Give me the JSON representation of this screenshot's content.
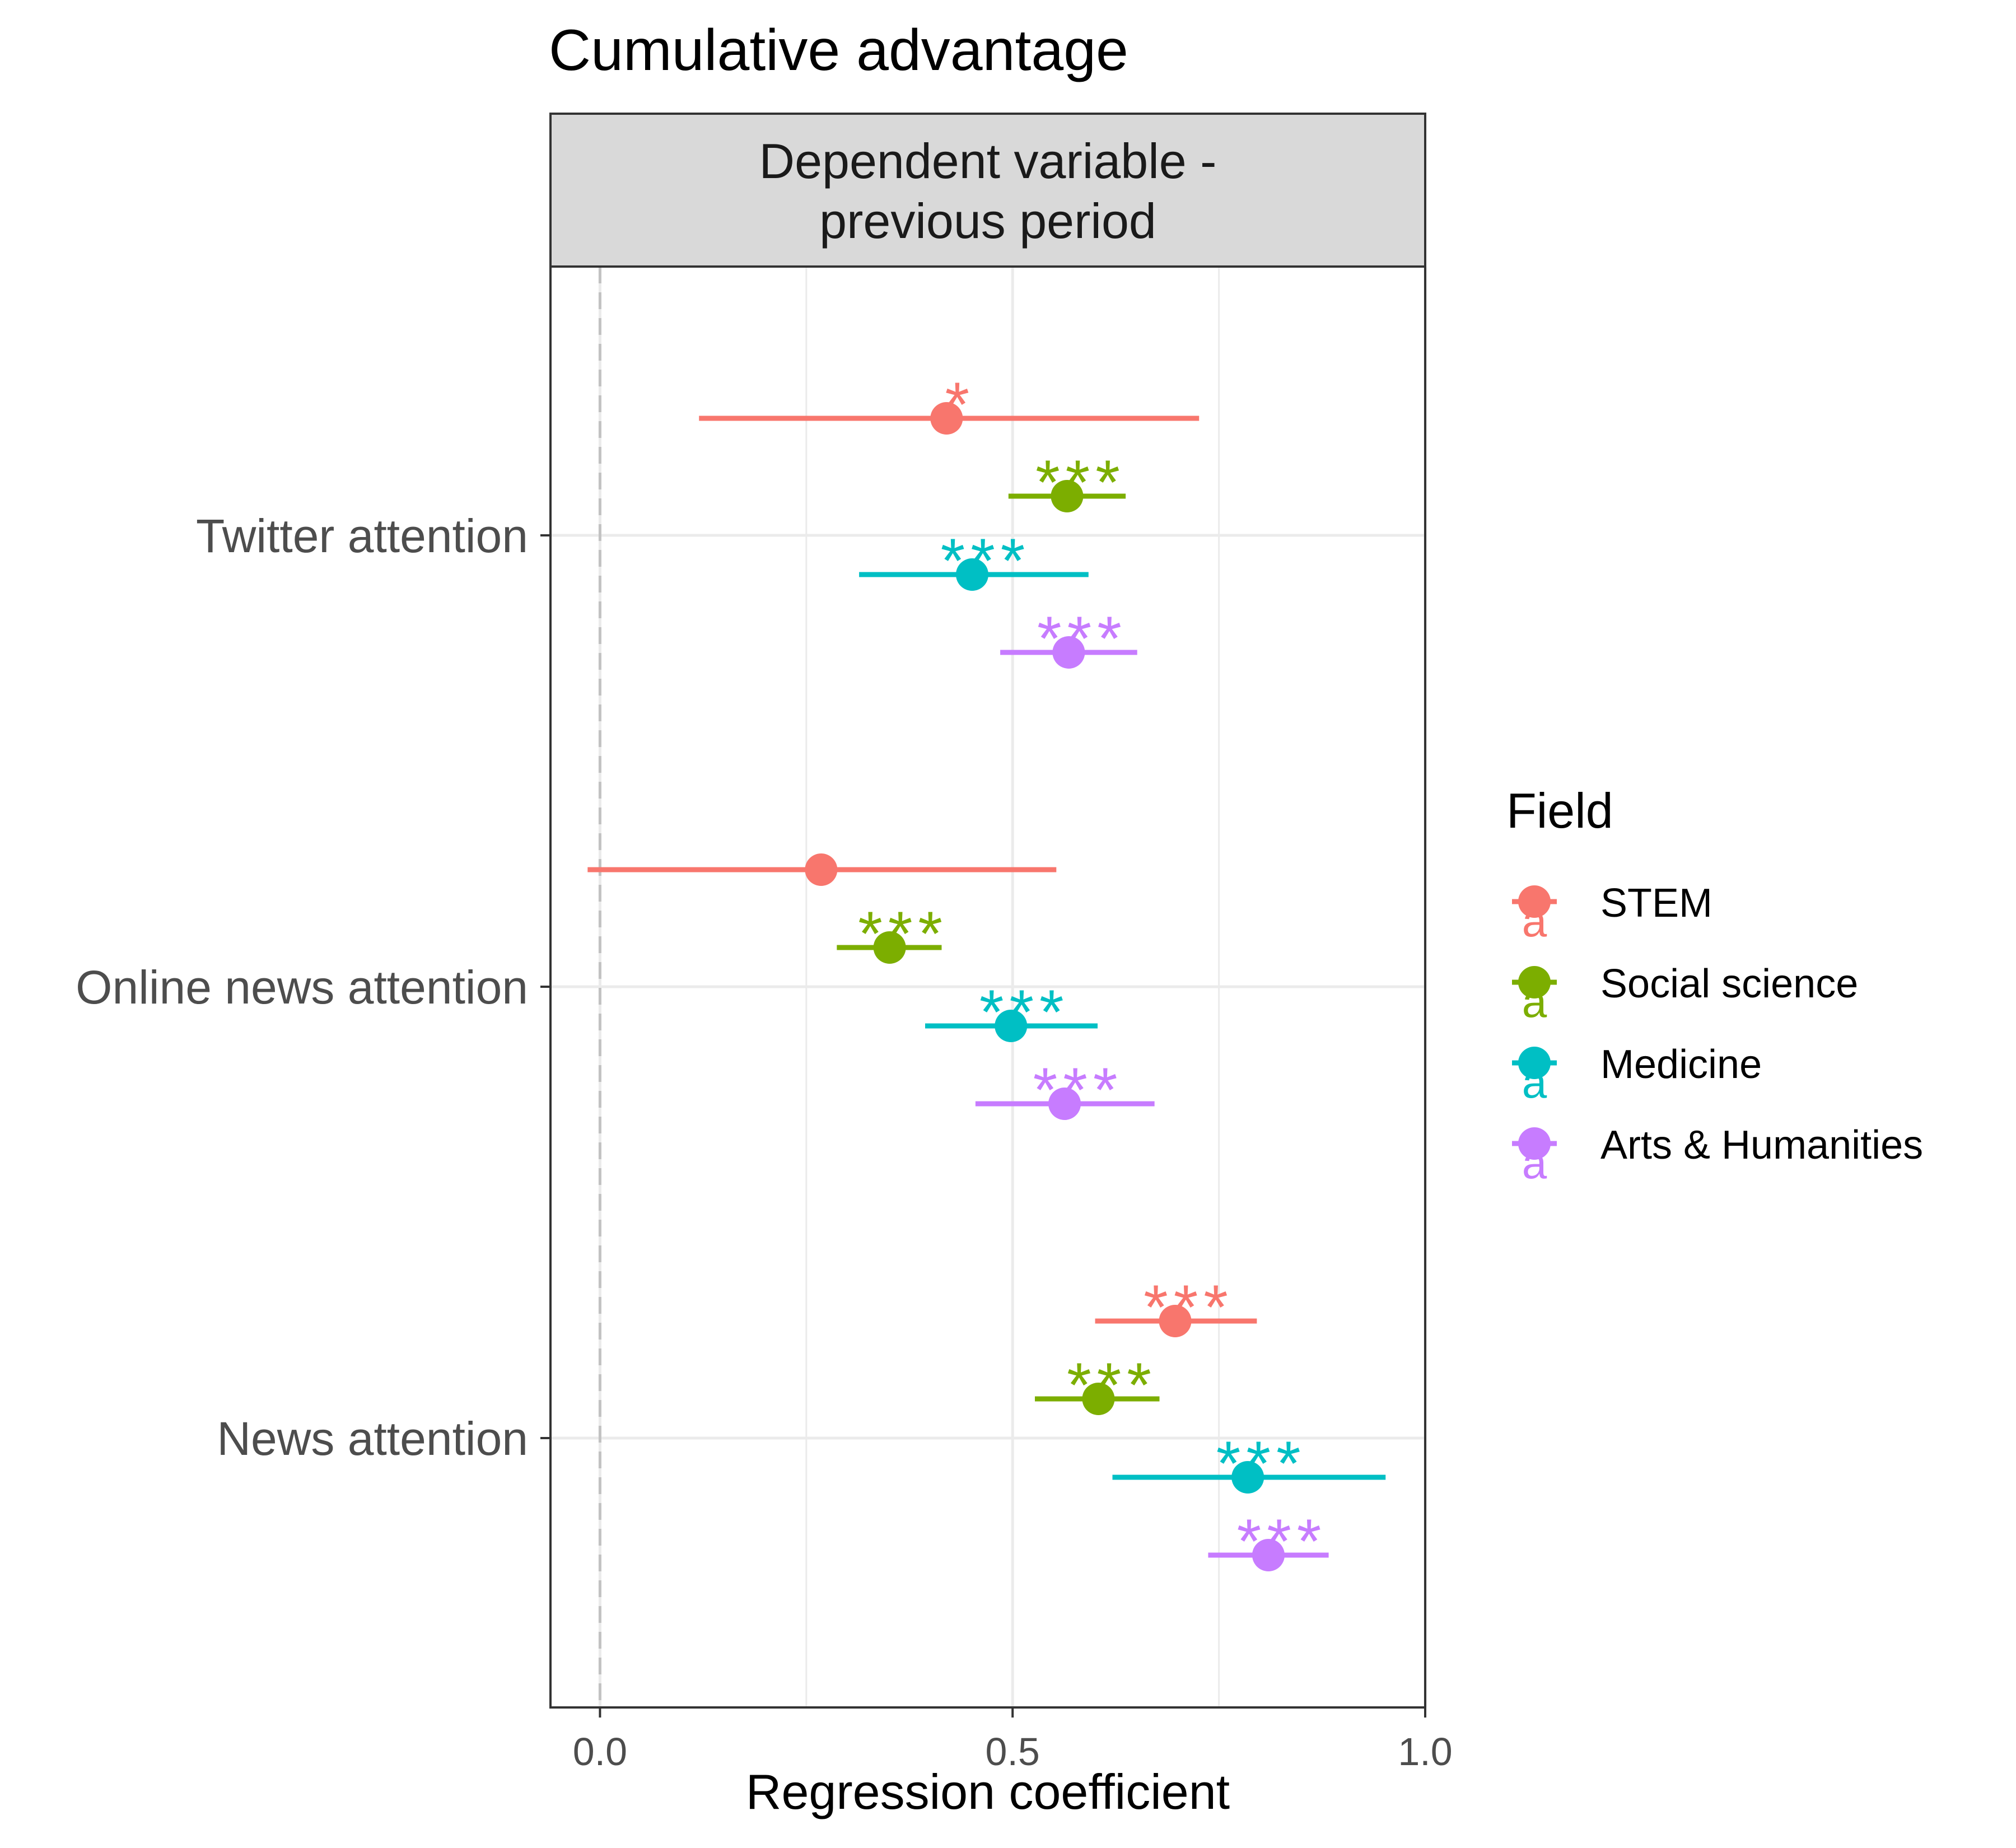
{
  "chart_data": {
    "type": "forest",
    "title": "Cumulative advantage",
    "facet_label_lines": [
      "Dependent variable -",
      "previous period"
    ],
    "xlabel": "Regression coefficient",
    "ylabel": "",
    "xlim": [
      -0.06,
      1.0
    ],
    "x_ticks": [
      {
        "value": 0.0,
        "label": "0.0"
      },
      {
        "value": 0.5,
        "label": "0.5"
      },
      {
        "value": 1.0,
        "label": "1.0"
      }
    ],
    "x_minor_gridlines": [
      0.25,
      0.75
    ],
    "reference_line": 0,
    "grid": true,
    "categories": [
      "Twitter attention",
      "Online news attention",
      "News attention"
    ],
    "legend": {
      "title": "Field",
      "position": "right"
    },
    "series": [
      {
        "name": "STEM",
        "color": "#F8766D",
        "points": [
          {
            "category": "Twitter attention",
            "estimate": 0.42,
            "low": 0.12,
            "high": 0.726,
            "sig": "*"
          },
          {
            "category": "Online news attention",
            "estimate": 0.268,
            "low": -0.015,
            "high": 0.553,
            "sig": ""
          },
          {
            "category": "News attention",
            "estimate": 0.697,
            "low": 0.6,
            "high": 0.796,
            "sig": "***"
          }
        ]
      },
      {
        "name": "Social science",
        "color": "#7CAE00",
        "points": [
          {
            "category": "Twitter attention",
            "estimate": 0.566,
            "low": 0.495,
            "high": 0.637,
            "sig": "***"
          },
          {
            "category": "Online news attention",
            "estimate": 0.351,
            "low": 0.287,
            "high": 0.414,
            "sig": "***"
          },
          {
            "category": "News attention",
            "estimate": 0.604,
            "low": 0.527,
            "high": 0.678,
            "sig": "***"
          }
        ]
      },
      {
        "name": "Medicine",
        "color": "#00BFC4",
        "points": [
          {
            "category": "Twitter attention",
            "estimate": 0.451,
            "low": 0.314,
            "high": 0.592,
            "sig": "***"
          },
          {
            "category": "Online news attention",
            "estimate": 0.498,
            "low": 0.394,
            "high": 0.603,
            "sig": "***"
          },
          {
            "category": "News attention",
            "estimate": 0.785,
            "low": 0.621,
            "high": 0.952,
            "sig": "***"
          }
        ]
      },
      {
        "name": "Arts & Humanities",
        "color": "#C77CFF",
        "points": [
          {
            "category": "Twitter attention",
            "estimate": 0.568,
            "low": 0.485,
            "high": 0.651,
            "sig": "***"
          },
          {
            "category": "Online news attention",
            "estimate": 0.563,
            "low": 0.455,
            "high": 0.672,
            "sig": "***"
          },
          {
            "category": "News attention",
            "estimate": 0.81,
            "low": 0.737,
            "high": 0.883,
            "sig": "***"
          }
        ]
      }
    ]
  }
}
